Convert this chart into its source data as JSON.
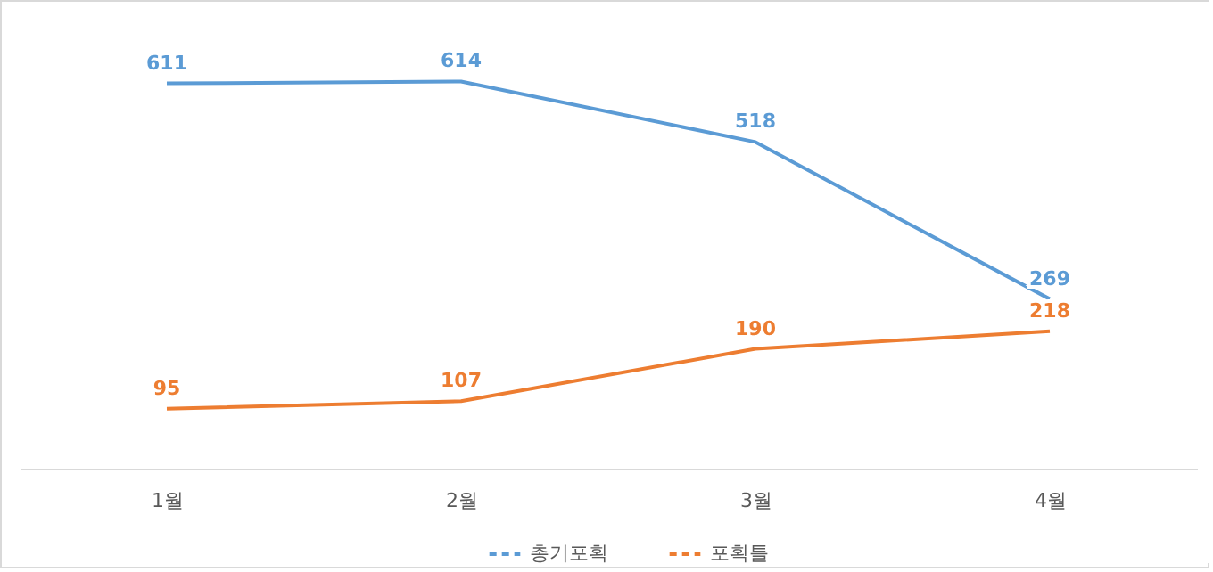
{
  "chart_data": {
    "type": "line",
    "categories": [
      "1월",
      "2월",
      "3월",
      "4월"
    ],
    "series": [
      {
        "name": "총기포획",
        "color": "#5b9bd5",
        "values": [
          611,
          614,
          518,
          269
        ]
      },
      {
        "name": "포획틀",
        "color": "#ed7d31",
        "values": [
          95,
          107,
          190,
          218
        ]
      }
    ],
    "data_labels": true,
    "legend": "bottom",
    "grid": false,
    "tick_labels": "x",
    "marker": "none",
    "line_style": "solid"
  }
}
